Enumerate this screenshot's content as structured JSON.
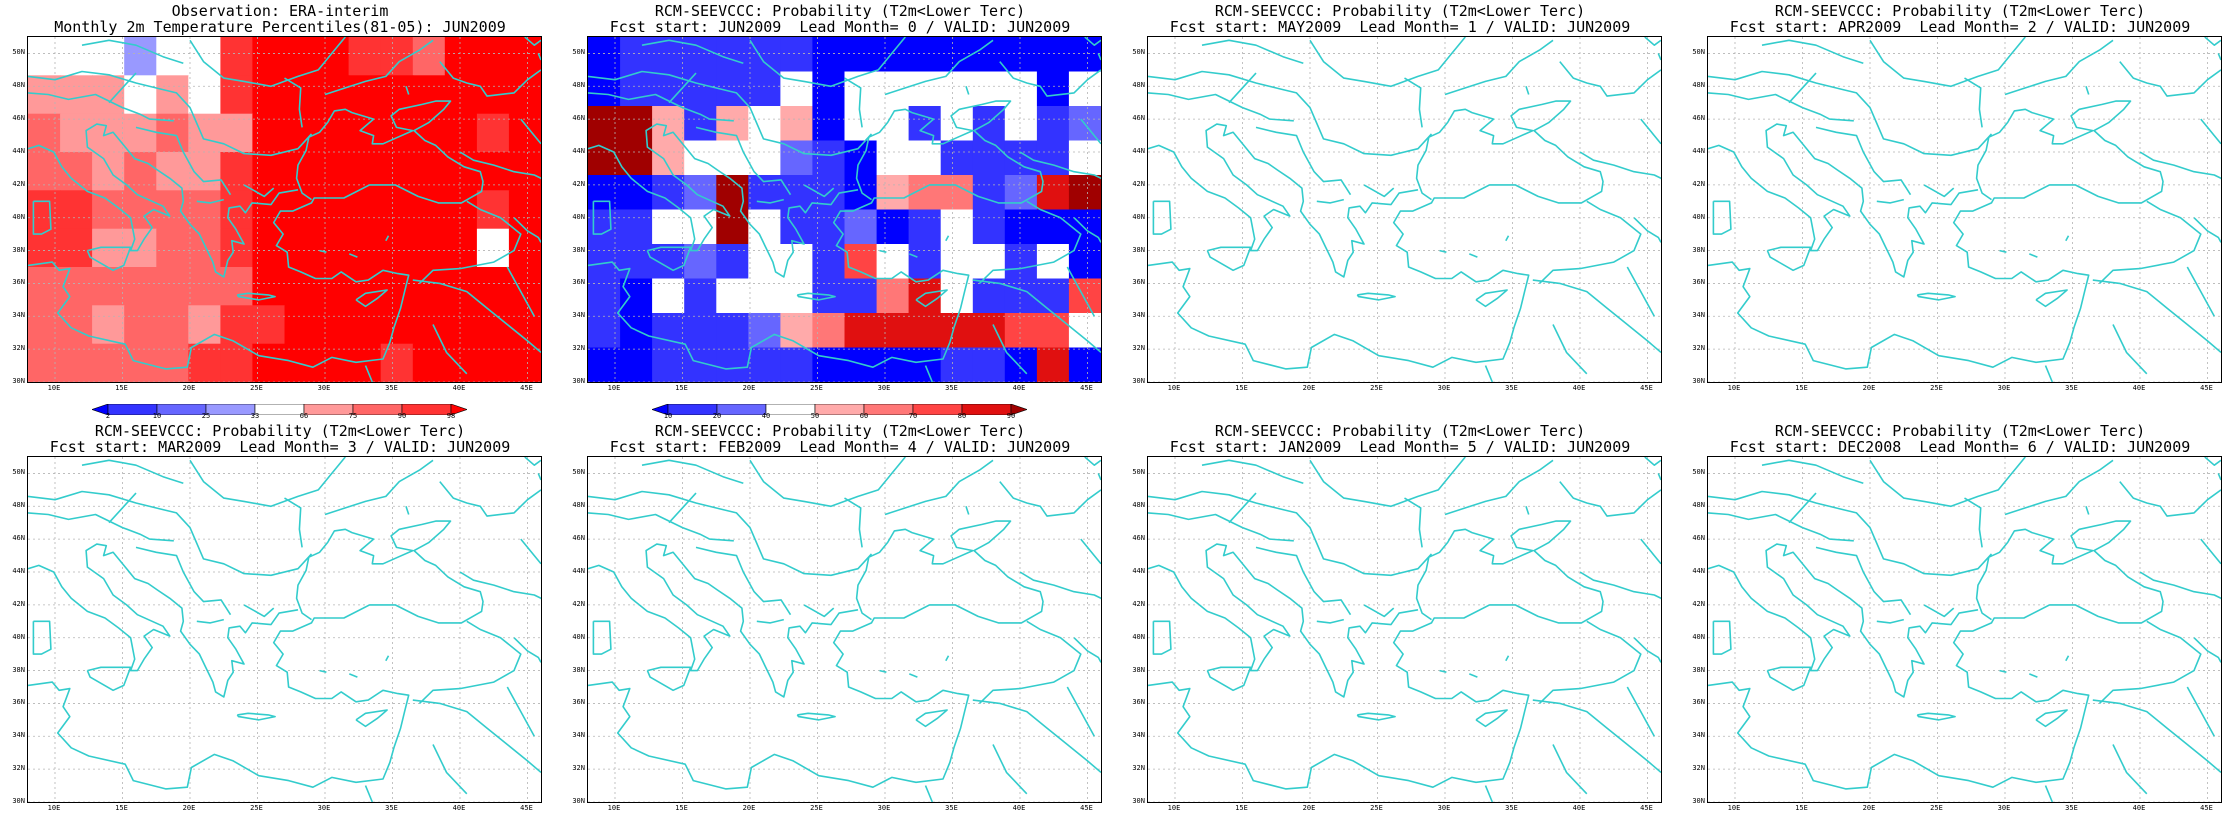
{
  "panels": [
    {
      "id": "obs",
      "title1": "Observation: ERA-interim",
      "title2": "Monthly 2m Temperature Percentiles(81-05): JUN2009",
      "kind": "obs"
    },
    {
      "id": "lead0",
      "title1": "RCM-SEEVCCC: Probability (T2m<Lower Terc)",
      "title2": "Fcst start: JUN2009  Lead Month= 0 / VALID: JUN2009",
      "kind": "prob"
    },
    {
      "id": "lead1",
      "title1": "RCM-SEEVCCC: Probability (T2m<Lower Terc)",
      "title2": "Fcst start: MAY2009  Lead Month= 1 / VALID: JUN2009",
      "kind": "empty"
    },
    {
      "id": "lead2",
      "title1": "RCM-SEEVCCC: Probability (T2m<Lower Terc)",
      "title2": "Fcst start: APR2009  Lead Month= 2 / VALID: JUN2009",
      "kind": "empty"
    },
    {
      "id": "lead3",
      "title1": "RCM-SEEVCCC: Probability (T2m<Lower Terc)",
      "title2": "Fcst start: MAR2009  Lead Month= 3 / VALID: JUN2009",
      "kind": "empty"
    },
    {
      "id": "lead4",
      "title1": "RCM-SEEVCCC: Probability (T2m<Lower Terc)",
      "title2": "Fcst start: FEB2009  Lead Month= 4 / VALID: JUN2009",
      "kind": "empty"
    },
    {
      "id": "lead5",
      "title1": "RCM-SEEVCCC: Probability (T2m<Lower Terc)",
      "title2": "Fcst start: JAN2009  Lead Month= 5 / VALID: JUN2009",
      "kind": "empty"
    },
    {
      "id": "lead6",
      "title1": "RCM-SEEVCCC: Probability (T2m<Lower Terc)",
      "title2": "Fcst start: DEC2008  Lead Month= 6 / VALID: JUN2009",
      "kind": "empty"
    }
  ],
  "map": {
    "lon_range": [
      8,
      46
    ],
    "lat_range": [
      30,
      51
    ],
    "lat_ticks": [
      "30N",
      "32N",
      "34N",
      "36N",
      "38N",
      "40N",
      "42N",
      "44N",
      "46N",
      "48N",
      "50N"
    ],
    "lon_ticks": [
      "10E",
      "15E",
      "20E",
      "25E",
      "30E",
      "35E",
      "40E",
      "45E"
    ],
    "coast_color": "#33cccc",
    "grid_color": "#b4b4b4"
  },
  "obs_colorbar": {
    "labels": [
      "2",
      "10",
      "25",
      "33",
      "66",
      "75",
      "90",
      "98"
    ],
    "colors": [
      "#0000ff",
      "#3333ff",
      "#6666ff",
      "#9999ff",
      "#ffffff",
      "#ff9999",
      "#ff6666",
      "#ff3333",
      "#ff0000"
    ]
  },
  "prob_colorbar": {
    "labels": [
      "10",
      "20",
      "40",
      "50",
      "60",
      "70",
      "80",
      "90"
    ],
    "colors": [
      "#0000ff",
      "#3333ff",
      "#6666ff",
      "#ffffff",
      "#ffaaaa",
      "#ff7777",
      "#ff4444",
      "#e01010",
      "#a00000"
    ]
  }
}
